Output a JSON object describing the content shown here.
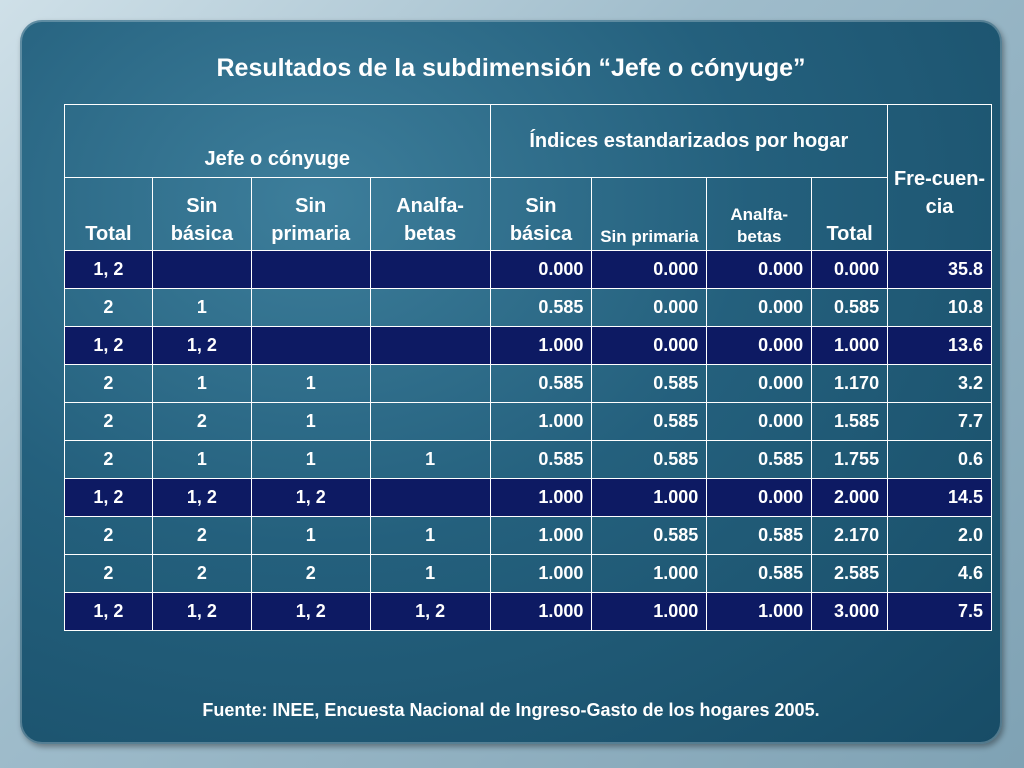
{
  "title": "Resultados de la subdimensión “Jefe o cónyuge”",
  "table": {
    "group_headers": {
      "jefe": "Jefe o cónyuge",
      "indices": "Índices estandarizados por hogar",
      "frecuencia": "Fre-cuen-cia"
    },
    "sub_headers": {
      "total": "Total",
      "sin_basica": "Sin básica",
      "sin_primaria": "Sin primaria",
      "analfabetas": "Analfa-betas",
      "idx_sin_basica": "Sin básica",
      "idx_sin_primaria": "Sin primaria",
      "idx_analfabetas": "Analfa-betas",
      "idx_total": "Total"
    },
    "rows": [
      [
        "1, 2",
        "",
        "",
        "",
        "0.000",
        "0.000",
        "0.000",
        "0.000",
        "35.8"
      ],
      [
        "2",
        "1",
        "",
        "",
        "0.585",
        "0.000",
        "0.000",
        "0.585",
        "10.8"
      ],
      [
        "1, 2",
        "1, 2",
        "",
        "",
        "1.000",
        "0.000",
        "0.000",
        "1.000",
        "13.6"
      ],
      [
        "2",
        "1",
        "1",
        "",
        "0.585",
        "0.585",
        "0.000",
        "1.170",
        "3.2"
      ],
      [
        "2",
        "2",
        "1",
        "",
        "1.000",
        "0.585",
        "0.000",
        "1.585",
        "7.7"
      ],
      [
        "2",
        "1",
        "1",
        "1",
        "0.585",
        "0.585",
        "0.585",
        "1.755",
        "0.6"
      ],
      [
        "1, 2",
        "1, 2",
        "1, 2",
        "",
        "1.000",
        "1.000",
        "0.000",
        "2.000",
        "14.5"
      ],
      [
        "2",
        "2",
        "1",
        "1",
        "1.000",
        "0.585",
        "0.585",
        "2.170",
        "2.0"
      ],
      [
        "2",
        "2",
        "2",
        "1",
        "1.000",
        "1.000",
        "0.585",
        "2.585",
        "4.6"
      ],
      [
        "1, 2",
        "1, 2",
        "1, 2",
        "1, 2",
        "1.000",
        "1.000",
        "1.000",
        "3.000",
        "7.5"
      ]
    ],
    "dark_rows": [
      0,
      2,
      6,
      9
    ]
  },
  "source": "Fuente: INEE, Encuesta Nacional de Ingreso-Gasto de los hogares 2005.",
  "colors": {
    "panel": "#24607d",
    "dark_row": "#0d1a63",
    "text": "#ffffff"
  }
}
